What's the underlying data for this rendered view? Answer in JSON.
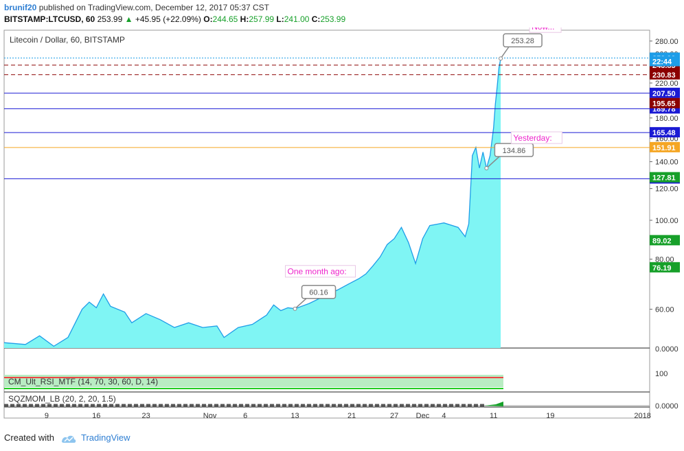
{
  "header": {
    "user": "brunif20",
    "published_text": "published on TradingView.com, December 12, 2017 05:37 CST",
    "symbol": "BITSTAMP:LTCUSD, 60",
    "last": "253.99",
    "change": "+45.95 (+22.09%)",
    "o_label": "O:",
    "o": "244.65",
    "h_label": "H:",
    "h": "257.99",
    "l_label": "L:",
    "l": "241.00",
    "c_label": "C:",
    "c": "253.99"
  },
  "footer": {
    "created_with": "Created with",
    "brand": "TradingView"
  },
  "chart_data": {
    "type": "area",
    "title": "Litecoin / Dollar, 60, BITSTAMP",
    "y_scale": "log",
    "ylim": [
      48,
      298
    ],
    "y_ticks": [
      {
        "value": 280,
        "label": "280.00"
      },
      {
        "value": 260,
        "label": "260.00"
      },
      {
        "value": 240,
        "label": "240.00"
      },
      {
        "value": 220,
        "label": "220.00"
      },
      {
        "value": 200,
        "label": "200.00"
      },
      {
        "value": 180,
        "label": "180.00"
      },
      {
        "value": 160,
        "label": "160.00"
      },
      {
        "value": 140,
        "label": "140.00"
      },
      {
        "value": 120,
        "label": "120.00"
      },
      {
        "value": 100,
        "label": "100.00"
      },
      {
        "value": 80,
        "label": "80.00"
      },
      {
        "value": 60,
        "label": "60.00"
      }
    ],
    "x_ticks": [
      "9",
      "16",
      "23",
      "Nov",
      "6",
      "13",
      "21",
      "27",
      "Dec",
      "4",
      "11",
      "19",
      "2018"
    ],
    "x_dates": [
      "2017-10-09",
      "2017-10-16",
      "2017-10-23",
      "2017-11-01",
      "2017-11-06",
      "2017-11-13",
      "2017-11-21",
      "2017-11-27",
      "2017-12-01",
      "2017-12-04",
      "2017-12-11",
      "2017-12-19",
      "2018-01-01"
    ],
    "series": [
      {
        "type": "area",
        "points": [
          [
            "2017-10-03",
            49.5
          ],
          [
            "2017-10-06",
            49.0
          ],
          [
            "2017-10-08",
            51.5
          ],
          [
            "2017-10-10",
            48.5
          ],
          [
            "2017-10-12",
            51.0
          ],
          [
            "2017-10-14",
            60.0
          ],
          [
            "2017-10-15",
            62.5
          ],
          [
            "2017-10-16",
            60.5
          ],
          [
            "2017-10-17",
            65.5
          ],
          [
            "2017-10-18",
            61.0
          ],
          [
            "2017-10-20",
            59.0
          ],
          [
            "2017-10-21",
            55.5
          ],
          [
            "2017-10-23",
            58.5
          ],
          [
            "2017-10-25",
            56.5
          ],
          [
            "2017-10-27",
            54.0
          ],
          [
            "2017-10-29",
            55.5
          ],
          [
            "2017-10-31",
            54.0
          ],
          [
            "2017-11-02",
            54.5
          ],
          [
            "2017-11-03",
            51.0
          ],
          [
            "2017-11-05",
            54.0
          ],
          [
            "2017-11-07",
            55.0
          ],
          [
            "2017-11-09",
            58.0
          ],
          [
            "2017-11-10",
            61.5
          ],
          [
            "2017-11-11",
            59.5
          ],
          [
            "2017-11-12",
            60.5
          ],
          [
            "2017-11-13",
            60.16
          ],
          [
            "2017-11-15",
            62.0
          ],
          [
            "2017-11-17",
            64.5
          ],
          [
            "2017-11-19",
            67.0
          ],
          [
            "2017-11-21",
            70.0
          ],
          [
            "2017-11-22",
            71.5
          ],
          [
            "2017-11-23",
            73.5
          ],
          [
            "2017-11-24",
            77.0
          ],
          [
            "2017-11-25",
            81.0
          ],
          [
            "2017-11-26",
            87.0
          ],
          [
            "2017-11-27",
            90.0
          ],
          [
            "2017-11-28",
            96.0
          ],
          [
            "2017-11-29",
            88.0
          ],
          [
            "2017-11-30",
            78.0
          ],
          [
            "2017-12-01",
            90.0
          ],
          [
            "2017-12-02",
            97.0
          ],
          [
            "2017-12-04",
            98.5
          ],
          [
            "2017-12-06",
            96.0
          ],
          [
            "2017-12-07",
            91.0
          ],
          [
            "2017-12-07T12:00",
            98.0
          ],
          [
            "2017-12-08",
            145.0
          ],
          [
            "2017-12-08T12:00",
            152.0
          ],
          [
            "2017-12-09",
            135.0
          ],
          [
            "2017-12-09T12:00",
            148.0
          ],
          [
            "2017-12-10",
            134.86
          ],
          [
            "2017-12-10T12:00",
            145.0
          ],
          [
            "2017-12-11",
            170.0
          ],
          [
            "2017-12-11T06:00",
            195.0
          ],
          [
            "2017-12-11T12:00",
            215.0
          ],
          [
            "2017-12-11T18:00",
            240.0
          ],
          [
            "2017-12-12",
            253.28
          ]
        ],
        "color": "#1e9de8",
        "fill": "#7ff5f4"
      }
    ],
    "horizontal_lines": [
      {
        "value": 207.5,
        "label": "207.50",
        "color": "#1a1ad4",
        "style": "solid"
      },
      {
        "value": 189.78,
        "label": "189.78",
        "color": "#1a1ad4",
        "style": "solid"
      },
      {
        "value": 165.48,
        "label": "165.48",
        "color": "#1a1ad4",
        "style": "solid"
      },
      {
        "value": 126.93,
        "label": "126.93",
        "color": "#1a1ad4",
        "style": "solid"
      },
      {
        "value": 151.91,
        "label": "151.91",
        "color": "#f5a623",
        "style": "solid"
      },
      {
        "value": 243.85,
        "label": "243.85",
        "color": "#8b0000",
        "style": "dashed"
      },
      {
        "value": 230.83,
        "label": "230.83",
        "color": "#8b0000",
        "style": "dashed"
      },
      {
        "value": 253.99,
        "label": "253.99",
        "color": "#1e9de8",
        "style": "dotted"
      }
    ],
    "axis_badges": [
      {
        "value": 253.99,
        "label": "253.99",
        "bg": "#1e9de8"
      },
      {
        "value": 249.0,
        "label": "22:44",
        "bg": "#1e9de8"
      },
      {
        "value": 195.65,
        "label": "195.65",
        "bg": "#8b0000"
      },
      {
        "value": 127.81,
        "label": "127.81",
        "bg": "#17a02a"
      },
      {
        "value": 89.02,
        "label": "89.02",
        "bg": "#17a02a"
      },
      {
        "value": 76.19,
        "label": "76.19",
        "bg": "#17a02a"
      }
    ],
    "annotations": [
      {
        "type": "text",
        "text": "Now...",
        "color": "#ee22cc"
      },
      {
        "type": "text",
        "text": "Yesterday:",
        "color": "#ee22cc"
      },
      {
        "type": "text",
        "text": "One month ago:",
        "color": "#ee22cc"
      },
      {
        "type": "callout",
        "text": "253.28"
      },
      {
        "type": "callout",
        "text": "134.86"
      },
      {
        "type": "callout",
        "text": "60.16"
      }
    ],
    "indicators": [
      {
        "name": "CM_Ult_RSI_MTF (14, 70, 30, 60, D, 14)",
        "y_tick": "100",
        "y_tick_zero": "0.0000"
      },
      {
        "name": "SQZMOM_LB (20, 2, 20, 1.5)",
        "y_tick": "0.0000"
      }
    ]
  }
}
